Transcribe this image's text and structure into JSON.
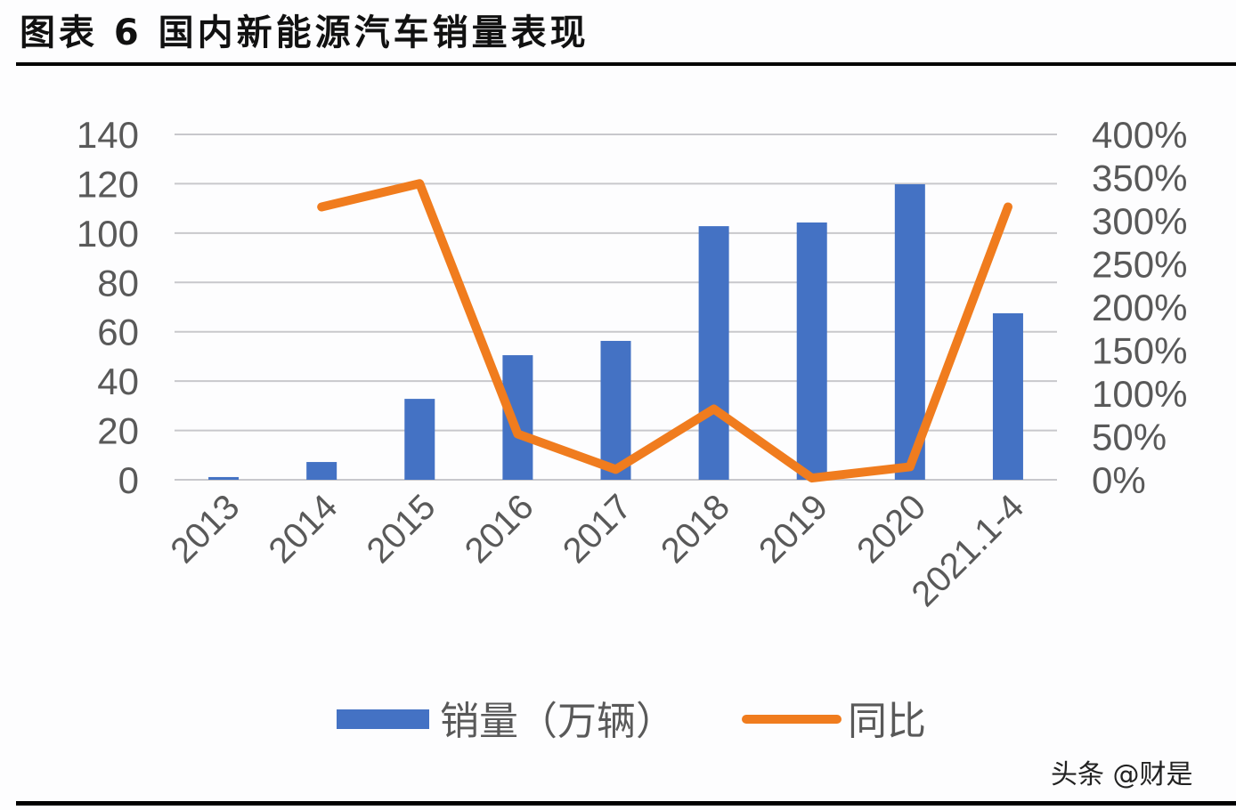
{
  "title": "图表 6  国内新能源汽车销量表现",
  "watermark": "头条 @财是",
  "chart_data": {
    "type": "bar+line",
    "title": "图表 6 国内新能源汽车销量表现",
    "categories": [
      "2013",
      "2014",
      "2015",
      "2016",
      "2017",
      "2018",
      "2019",
      "2020",
      "2021.1-4"
    ],
    "series": [
      {
        "name": "销量（万辆）",
        "type": "bar",
        "axis": "left",
        "color": "#4472C4",
        "values": [
          1.1,
          7.2,
          32.8,
          50.5,
          56.3,
          102.8,
          104.3,
          119.8,
          67.5
        ]
      },
      {
        "name": "同比",
        "type": "line",
        "axis": "right",
        "color": "#F07C1E",
        "values": [
          null,
          316,
          343,
          53,
          12,
          82,
          2,
          15,
          316
        ]
      }
    ],
    "ylim": [
      0,
      140
    ],
    "yticks": [
      "0",
      "20",
      "40",
      "60",
      "80",
      "100",
      "120",
      "140"
    ],
    "y2lim": [
      0,
      400
    ],
    "y2ticks": [
      "0%",
      "50%",
      "100%",
      "150%",
      "200%",
      "250%",
      "300%",
      "350%",
      "400%"
    ],
    "grid": true,
    "legend_position": "bottom"
  }
}
